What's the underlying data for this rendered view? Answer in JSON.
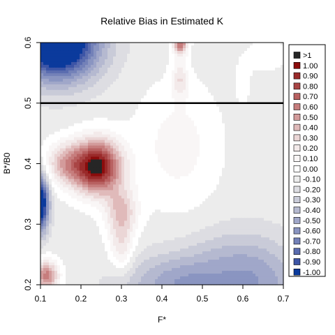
{
  "chart_data": {
    "type": "heatmap",
    "title": "Relative Bias in Estimated K",
    "xlabel": "F*",
    "ylabel": "B*/B0",
    "xlim": [
      0.1,
      0.7
    ],
    "ylim": [
      0.2,
      0.6
    ],
    "xticks": [
      "0.1",
      "0.2",
      "0.3",
      "0.4",
      "0.5",
      "0.6",
      "0.7"
    ],
    "yticks": [
      "0.2",
      "0.3",
      "0.4",
      "0.5",
      "0.6"
    ],
    "reference_line": {
      "y": 0.5,
      "color": "#000000"
    },
    "grid": false,
    "legend": {
      "placement": "right",
      "entries": [
        {
          "label": ">1",
          "color": "#262626"
        },
        {
          "label": "1.00",
          "color": "#8b0c0c"
        },
        {
          "label": "0.90",
          "color": "#9a2a2a"
        },
        {
          "label": "0.80",
          "color": "#a94545"
        },
        {
          "label": "0.70",
          "color": "#b86161"
        },
        {
          "label": "0.60",
          "color": "#c67d7d"
        },
        {
          "label": "0.50",
          "color": "#d39b9b"
        },
        {
          "label": "0.40",
          "color": "#e0baba"
        },
        {
          "label": "0.30",
          "color": "#ebd6d6"
        },
        {
          "label": "0.20",
          "color": "#f3eaea"
        },
        {
          "label": "0.10",
          "color": "#f9f6f6"
        },
        {
          "label": "0.00",
          "color": "#ffffff"
        },
        {
          "label": "-0.10",
          "color": "#ececec"
        },
        {
          "label": "-0.20",
          "color": "#dddde2"
        },
        {
          "label": "-0.30",
          "color": "#c9cbd8"
        },
        {
          "label": "-0.40",
          "color": "#b5b9d0"
        },
        {
          "label": "-0.50",
          "color": "#a0a7c9"
        },
        {
          "label": "-0.60",
          "color": "#8a95c1"
        },
        {
          "label": "-0.70",
          "color": "#7381b8"
        },
        {
          "label": "-0.80",
          "color": "#5a6caf"
        },
        {
          "label": "-0.90",
          "color": "#3d55a6"
        },
        {
          "label": "-1.00",
          "color": "#0b3a9c"
        }
      ]
    },
    "surface": {
      "base": -0.1,
      "components": [
        {
          "x": 0.24,
          "y": 0.395,
          "amp": 1.15,
          "sx": 0.06,
          "sy": 0.045
        },
        {
          "x": 0.16,
          "y": 0.4,
          "amp": 0.45,
          "sx": 0.05,
          "sy": 0.035
        },
        {
          "x": 0.3,
          "y": 0.32,
          "amp": 0.45,
          "sx": 0.04,
          "sy": 0.04
        },
        {
          "x": 0.3,
          "y": 0.26,
          "amp": 0.3,
          "sx": 0.03,
          "sy": 0.04
        },
        {
          "x": 0.115,
          "y": 0.215,
          "amp": 0.7,
          "sx": 0.03,
          "sy": 0.025
        },
        {
          "x": 0.445,
          "y": 0.6,
          "amp": 0.75,
          "sx": 0.018,
          "sy": 0.02
        },
        {
          "x": 0.445,
          "y": 0.54,
          "amp": 0.3,
          "sx": 0.02,
          "sy": 0.03
        },
        {
          "x": 0.44,
          "y": 0.43,
          "amp": 0.2,
          "sx": 0.1,
          "sy": 0.1
        },
        {
          "x": 0.14,
          "y": 0.6,
          "amp": -1.35,
          "sx": 0.1,
          "sy": 0.06
        },
        {
          "x": 0.1,
          "y": 0.335,
          "amp": -1.15,
          "sx": 0.02,
          "sy": 0.045
        },
        {
          "x": 0.45,
          "y": 0.2,
          "amp": -0.45,
          "sx": 0.14,
          "sy": 0.05
        },
        {
          "x": 0.65,
          "y": 0.2,
          "amp": -0.35,
          "sx": 0.1,
          "sy": 0.07
        },
        {
          "x": 0.56,
          "y": 0.25,
          "amp": -0.15,
          "sx": 0.1,
          "sy": 0.05
        },
        {
          "x": 0.6,
          "y": 0.535,
          "amp": 0.1,
          "sx": 0.02,
          "sy": 0.04
        },
        {
          "x": 0.66,
          "y": 0.58,
          "amp": 0.11,
          "sx": 0.05,
          "sy": 0.03
        }
      ]
    }
  }
}
